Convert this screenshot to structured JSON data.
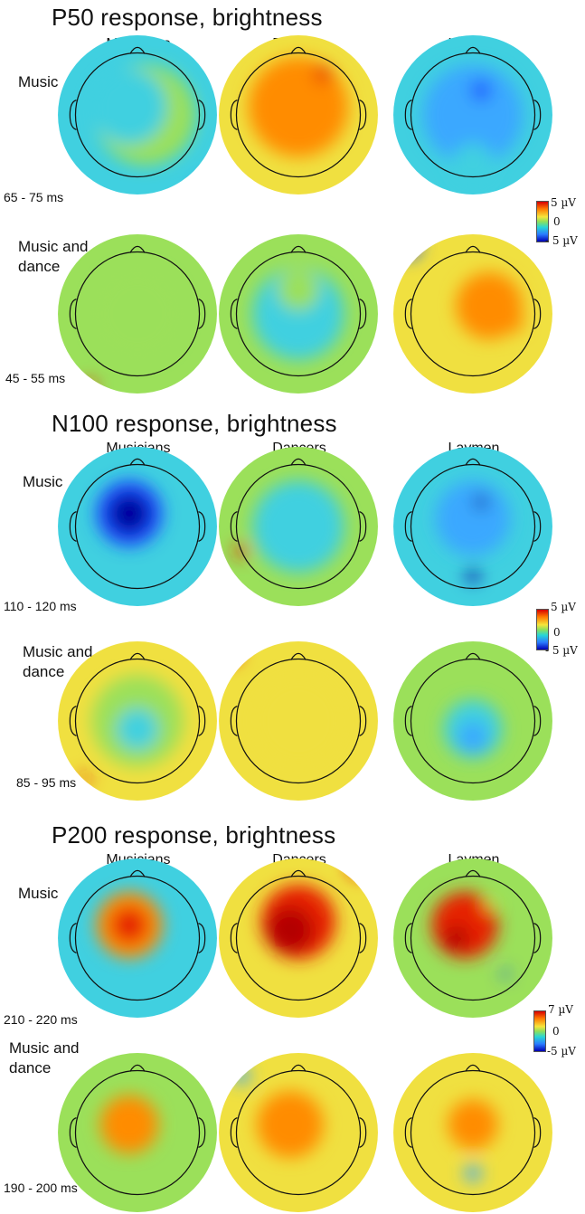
{
  "columns": [
    "Musicians",
    "Dancers",
    "Laymen"
  ],
  "panels": [
    {
      "title": "P50 response, brightness",
      "rows": [
        {
          "label_lines": [
            "Music"
          ],
          "time": "65 - 75 ms"
        },
        {
          "label_lines": [
            "Music and",
            "dance"
          ],
          "time": "45 - 55 ms"
        }
      ],
      "colorbar": {
        "max": "5 µV",
        "mid": "0",
        "min": "- 5 µV"
      }
    },
    {
      "title": "N100 response, brightness",
      "rows": [
        {
          "label_lines": [
            "Music"
          ],
          "time": "110 - 120 ms"
        },
        {
          "label_lines": [
            "Music and",
            "dance"
          ],
          "time": "85 - 95 ms"
        }
      ],
      "colorbar": {
        "max": "5 µV",
        "mid": "0",
        "min": "- 5 µV"
      }
    },
    {
      "title": "P200 response, brightness",
      "rows": [
        {
          "label_lines": [
            "Music"
          ],
          "time": "210 - 220 ms"
        },
        {
          "label_lines": [
            "Music and",
            "dance"
          ],
          "time": "190 - 200 ms"
        }
      ],
      "colorbar": {
        "max": "7 µV",
        "mid": "0",
        "min": "-5 µV"
      }
    }
  ],
  "colors": {
    "dark_red": "#b40000",
    "red": "#e62000",
    "orange": "#ff8c00",
    "yellow": "#f0e040",
    "green": "#9be05a",
    "cyan": "#40d0e0",
    "light_blue": "#3aa8ff",
    "blue": "#1a50ff",
    "dark_blue": "#0000a0"
  }
}
